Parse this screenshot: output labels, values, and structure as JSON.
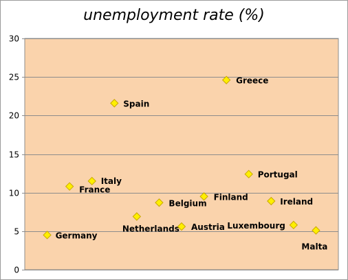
{
  "chart_data": {
    "type": "scatter",
    "title": "unemployment rate (%)",
    "xlabel": "",
    "ylabel": "",
    "ylim": [
      0,
      30
    ],
    "yticks": [
      0,
      5,
      10,
      15,
      20,
      25,
      30
    ],
    "xlim": [
      0,
      14
    ],
    "grid": true,
    "legend": "none",
    "plot_background": "#FAD3AC",
    "marker_color": "#FFEF00",
    "marker_edge": "#C8A800",
    "gridline_color": "#8C8C8C",
    "points": [
      {
        "label": "Germany",
        "x": 1,
        "y": 4.5
      },
      {
        "label": "France",
        "x": 2,
        "y": 10.8
      },
      {
        "label": "Italy",
        "x": 3,
        "y": 11.5
      },
      {
        "label": "Spain",
        "x": 4,
        "y": 21.6
      },
      {
        "label": "Netherlands",
        "x": 5,
        "y": 6.9
      },
      {
        "label": "Belgium",
        "x": 6,
        "y": 8.7
      },
      {
        "label": "Austria",
        "x": 7,
        "y": 5.6
      },
      {
        "label": "Finland",
        "x": 8,
        "y": 9.5
      },
      {
        "label": "Greece",
        "x": 9,
        "y": 24.6
      },
      {
        "label": "Portugal",
        "x": 10,
        "y": 12.4
      },
      {
        "label": "Ireland",
        "x": 11,
        "y": 8.9
      },
      {
        "label": "Luxembourg",
        "x": 12,
        "y": 5.8
      },
      {
        "label": "Malta",
        "x": 13,
        "y": 5.1
      }
    ]
  }
}
